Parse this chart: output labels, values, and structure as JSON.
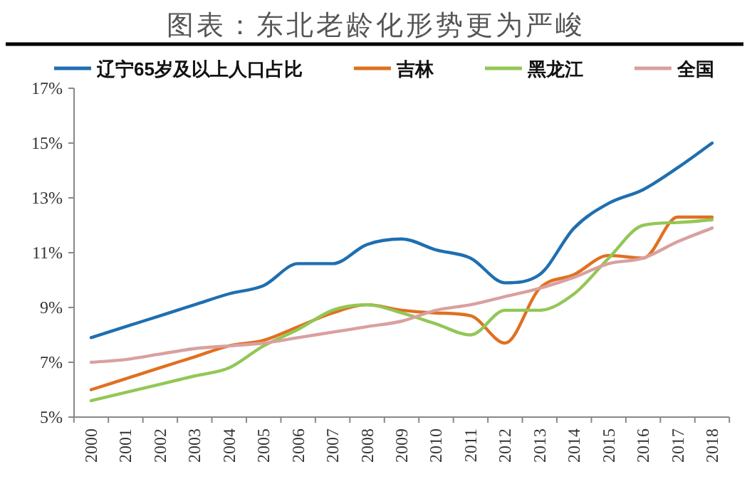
{
  "chart_data": {
    "type": "line",
    "title": "图表：东北老龄化形势更为严峻",
    "categories": [
      "2000",
      "2001",
      "2002",
      "2003",
      "2004",
      "2005",
      "2006",
      "2007",
      "2008",
      "2009",
      "2010",
      "2011",
      "2012",
      "2013",
      "2014",
      "2015",
      "2016",
      "2017",
      "2018"
    ],
    "series": [
      {
        "name": "辽宁65岁及以上人口占比",
        "color": "#1f6fb0",
        "values": [
          7.9,
          8.3,
          8.7,
          9.1,
          9.5,
          9.8,
          10.6,
          10.6,
          11.3,
          11.5,
          11.1,
          10.8,
          9.9,
          10.2,
          11.9,
          12.8,
          13.3,
          14.1,
          15.0
        ]
      },
      {
        "name": "吉林",
        "color": "#e07020",
        "values": [
          6.0,
          6.4,
          6.8,
          7.2,
          7.6,
          7.8,
          8.3,
          8.8,
          9.1,
          8.9,
          8.8,
          8.7,
          7.7,
          9.7,
          10.2,
          10.9,
          10.8,
          12.3,
          12.3
        ]
      },
      {
        "name": "黑龙江",
        "color": "#92c755",
        "values": [
          5.6,
          5.9,
          6.2,
          6.5,
          6.8,
          7.6,
          8.2,
          8.9,
          9.1,
          8.8,
          8.4,
          8.0,
          8.9,
          8.9,
          9.5,
          10.8,
          12.0,
          12.1,
          12.2
        ]
      },
      {
        "name": "全国",
        "color": "#d9a0a0",
        "values": [
          7.0,
          7.1,
          7.3,
          7.5,
          7.6,
          7.7,
          7.9,
          8.1,
          8.3,
          8.5,
          8.9,
          9.1,
          9.4,
          9.7,
          10.1,
          10.6,
          10.8,
          11.4,
          11.9
        ]
      }
    ],
    "ylim": [
      5,
      17
    ],
    "yticks": [
      {
        "value": 5,
        "label": "5%"
      },
      {
        "value": 7,
        "label": "7%"
      },
      {
        "value": 9,
        "label": "9%"
      },
      {
        "value": 11,
        "label": "11%"
      },
      {
        "value": 13,
        "label": "13%"
      },
      {
        "value": 15,
        "label": "15%"
      },
      {
        "value": 17,
        "label": "17%"
      }
    ],
    "grid": false,
    "legend": "top",
    "marker": "none",
    "line_style": "solid"
  }
}
